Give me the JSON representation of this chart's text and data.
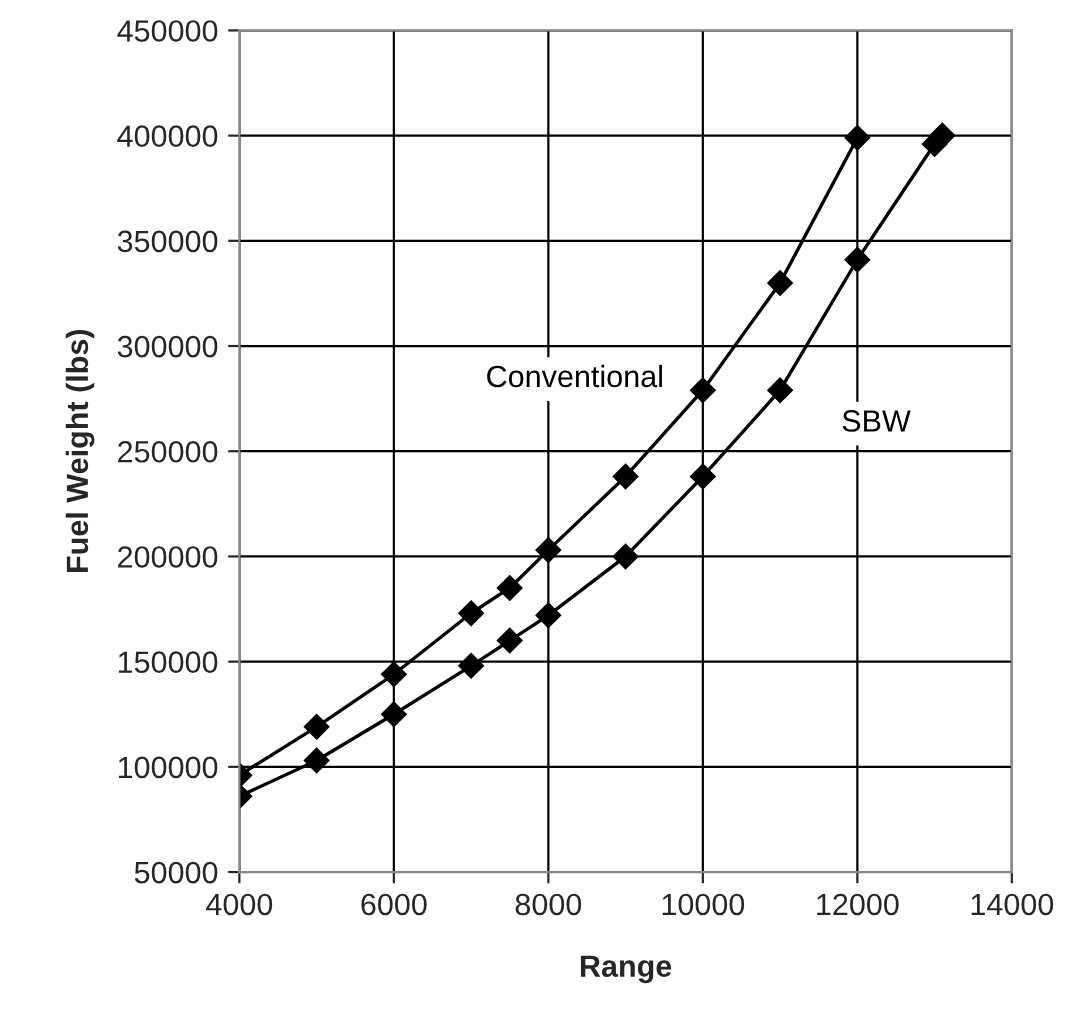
{
  "chart_data": {
    "type": "line",
    "xlabel": "Range",
    "ylabel": "Fuel Weight (lbs)",
    "xlim": [
      4000,
      14000
    ],
    "xticks": [
      4000,
      6000,
      8000,
      10000,
      12000,
      14000
    ],
    "ylim": [
      50000,
      450000
    ],
    "yticks": [
      50000,
      100000,
      150000,
      200000,
      250000,
      300000,
      350000,
      400000,
      450000
    ],
    "grid": true,
    "marker": "diamond",
    "line_style": "solid",
    "series": [
      {
        "name": "Conventional",
        "color": "#000000",
        "x": [
          4000,
          5000,
          6000,
          7000,
          7500,
          8000,
          9000,
          10000,
          11000,
          12000
        ],
        "values": [
          96000,
          119000,
          144000,
          173000,
          185000,
          203000,
          238000,
          279000,
          330000,
          399000
        ]
      },
      {
        "name": "SBW",
        "color": "#000000",
        "x": [
          4000,
          5000,
          6000,
          7000,
          7500,
          8000,
          9000,
          10000,
          11000,
          12000,
          13000,
          13100
        ],
        "values": [
          86000,
          103000,
          125000,
          148000,
          160000,
          172000,
          200000,
          238000,
          279000,
          341000,
          396000,
          400000
        ]
      }
    ]
  }
}
